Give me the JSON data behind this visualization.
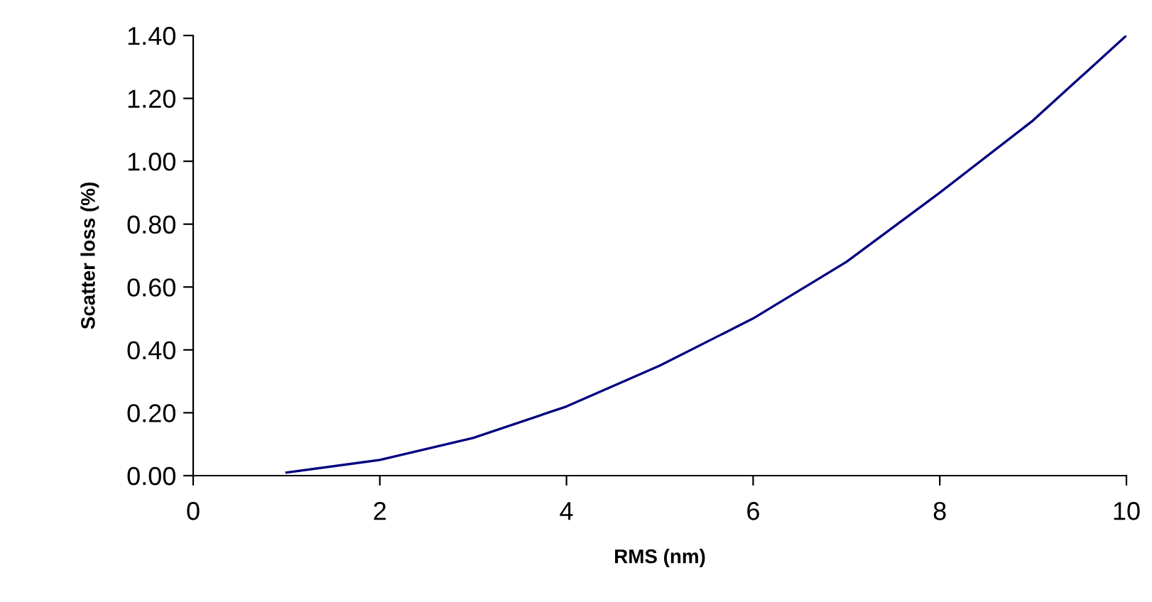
{
  "chart_data": {
    "type": "line",
    "xlabel": "RMS (nm)",
    "ylabel": "Scatter loss (%)",
    "x": [
      1,
      2,
      3,
      4,
      5,
      6,
      7,
      8,
      9,
      10
    ],
    "series": [
      {
        "color": "#000080",
        "values": [
          0.01,
          0.05,
          0.12,
          0.22,
          0.35,
          0.5,
          0.68,
          0.9,
          1.13,
          1.4
        ]
      }
    ],
    "xlim": [
      0,
      10
    ],
    "xticks": [
      0,
      2,
      4,
      6,
      8,
      10
    ],
    "ylim": [
      0,
      1.4
    ],
    "yticks": [
      {
        "value": 0,
        "label": "0.00"
      },
      {
        "value": 0.2,
        "label": "0.20"
      },
      {
        "value": 0.4,
        "label": "0.40"
      },
      {
        "value": 0.6,
        "label": "0.60"
      },
      {
        "value": 0.8,
        "label": "0.80"
      },
      {
        "value": 1.0,
        "label": "1.00"
      },
      {
        "value": 1.2,
        "label": "1.20"
      },
      {
        "value": 1.4,
        "label": "1.40"
      }
    ],
    "grid": false,
    "marker": "none",
    "line_style": "solid"
  }
}
